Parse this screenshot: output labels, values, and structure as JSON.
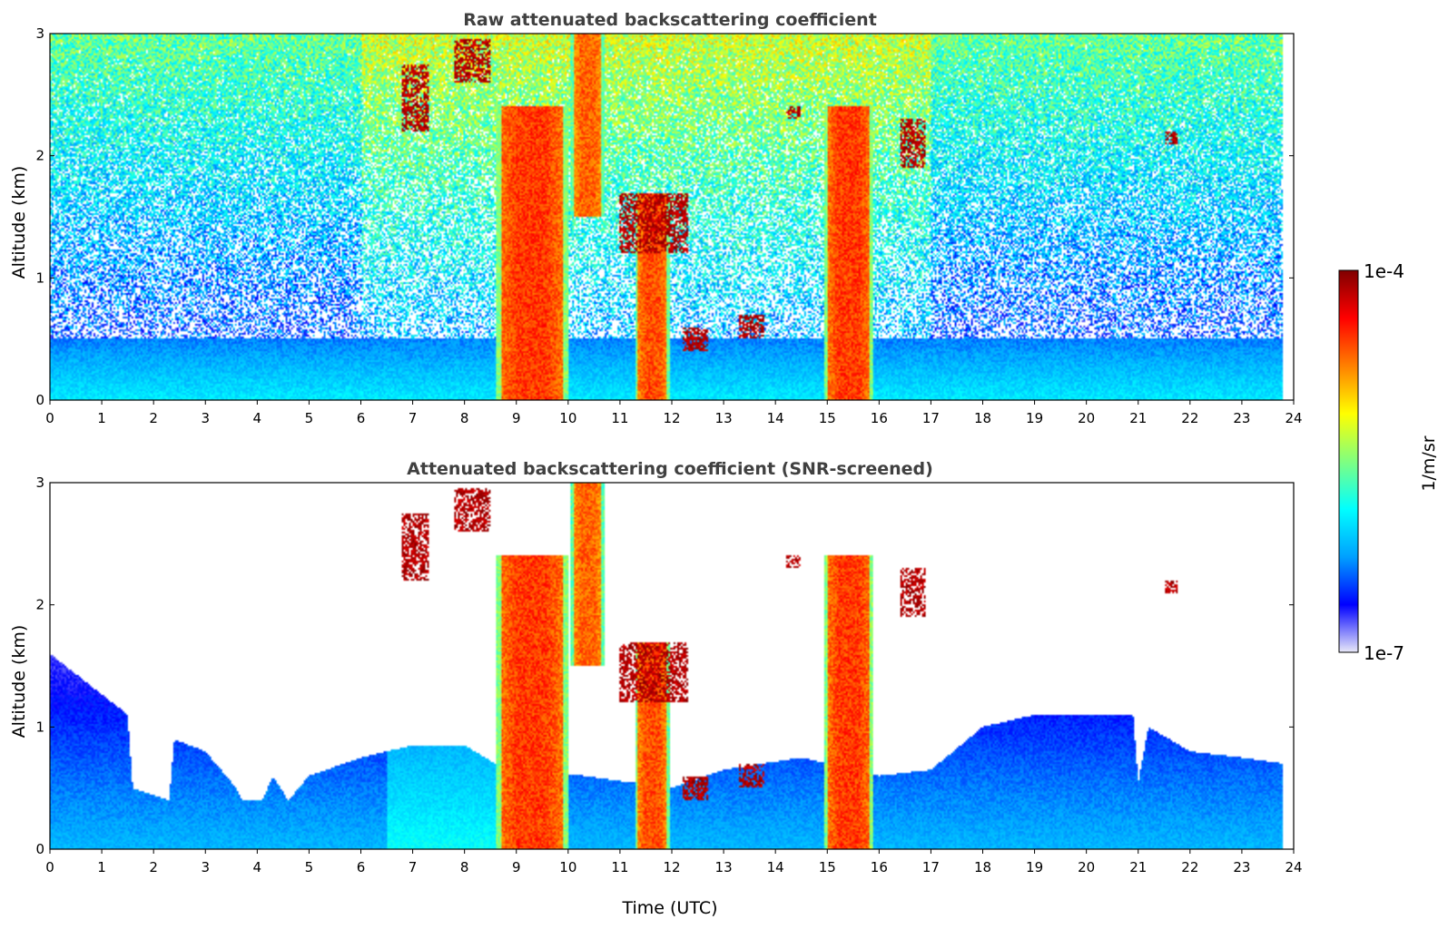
{
  "chart_data": [
    {
      "type": "heatmap",
      "title": "Raw attenuated backscattering coefficient",
      "xlabel": "",
      "ylabel": "Altitude (km)",
      "xlim": [
        0,
        24
      ],
      "ylim": [
        0,
        3
      ],
      "x_ticks": [
        "0",
        "1",
        "2",
        "3",
        "4",
        "5",
        "6",
        "7",
        "8",
        "9",
        "10",
        "11",
        "12",
        "13",
        "14",
        "15",
        "16",
        "17",
        "18",
        "19",
        "20",
        "21",
        "22",
        "23",
        "24"
      ],
      "y_ticks": [
        "0",
        "1",
        "2",
        "3"
      ],
      "grid": false,
      "features": [
        {
          "kind": "noise",
          "note_free": true,
          "x": [
            0,
            23.8
          ],
          "y": [
            0,
            3
          ]
        },
        {
          "kind": "boundary_layer",
          "x": [
            0,
            23.8
          ],
          "y": [
            0,
            0.5
          ]
        },
        {
          "kind": "precip_column",
          "x": [
            8.6,
            10.0
          ],
          "y": [
            0,
            2.4
          ],
          "intensity": 0.82
        },
        {
          "kind": "precip_column",
          "x": [
            10.05,
            10.7
          ],
          "y": [
            1.5,
            3.0
          ],
          "intensity": 0.78
        },
        {
          "kind": "precip_column",
          "x": [
            11.3,
            11.95
          ],
          "y": [
            0,
            1.7
          ],
          "intensity": 0.8
        },
        {
          "kind": "precip_column",
          "x": [
            14.95,
            15.9
          ],
          "y": [
            0,
            2.4
          ],
          "intensity": 0.82
        },
        {
          "kind": "cloud",
          "x": [
            6.8,
            7.3
          ],
          "y": [
            2.2,
            2.75
          ]
        },
        {
          "kind": "cloud",
          "x": [
            7.8,
            8.5
          ],
          "y": [
            2.6,
            2.95
          ]
        },
        {
          "kind": "cloud",
          "x": [
            11.0,
            12.3
          ],
          "y": [
            1.2,
            1.7
          ]
        },
        {
          "kind": "cloud",
          "x": [
            12.2,
            12.7
          ],
          "y": [
            0.4,
            0.6
          ]
        },
        {
          "kind": "cloud",
          "x": [
            13.3,
            13.8
          ],
          "y": [
            0.5,
            0.7
          ]
        },
        {
          "kind": "cloud",
          "x": [
            14.2,
            14.5
          ],
          "y": [
            2.3,
            2.4
          ]
        },
        {
          "kind": "cloud",
          "x": [
            16.4,
            16.9
          ],
          "y": [
            1.9,
            2.3
          ]
        },
        {
          "kind": "cloud",
          "x": [
            21.5,
            21.75
          ],
          "y": [
            2.1,
            2.2
          ]
        }
      ]
    },
    {
      "type": "heatmap",
      "title": "Attenuated backscattering coefficient (SNR-screened)",
      "xlabel": "Time (UTC)",
      "ylabel": "Altitude (km)",
      "xlim": [
        0,
        24
      ],
      "ylim": [
        0,
        3
      ],
      "x_ticks": [
        "0",
        "1",
        "2",
        "3",
        "4",
        "5",
        "6",
        "7",
        "8",
        "9",
        "10",
        "11",
        "12",
        "13",
        "14",
        "15",
        "16",
        "17",
        "18",
        "19",
        "20",
        "21",
        "22",
        "23",
        "24"
      ],
      "y_ticks": [
        "0",
        "1",
        "2",
        "3"
      ],
      "grid": false,
      "boundary_layer_top_km": {
        "time": [
          0,
          1.5,
          1.6,
          2.3,
          2.4,
          3.0,
          3.6,
          3.7,
          4.1,
          4.3,
          4.6,
          5.0,
          6.0,
          7.0,
          8.0,
          8.6,
          12.0,
          13.0,
          14.5,
          16.0,
          17.0,
          18.0,
          19.0,
          20.0,
          20.9,
          21.0,
          21.2,
          22.0,
          23.0,
          23.8
        ],
        "top": [
          1.6,
          1.1,
          0.5,
          0.4,
          0.9,
          0.8,
          0.5,
          0.4,
          0.4,
          0.6,
          0.4,
          0.6,
          0.75,
          0.85,
          0.85,
          0.7,
          0.5,
          0.65,
          0.75,
          0.6,
          0.65,
          1.0,
          1.1,
          1.1,
          1.1,
          0.55,
          1.0,
          0.8,
          0.75,
          0.7
        ]
      },
      "features": [
        {
          "kind": "precip_column",
          "x": [
            8.6,
            10.0
          ],
          "y": [
            0,
            2.4
          ],
          "intensity": 0.82
        },
        {
          "kind": "precip_column",
          "x": [
            10.05,
            10.7
          ],
          "y": [
            1.5,
            3.0
          ],
          "intensity": 0.78
        },
        {
          "kind": "precip_column",
          "x": [
            11.3,
            11.95
          ],
          "y": [
            0,
            1.7
          ],
          "intensity": 0.8
        },
        {
          "kind": "precip_column",
          "x": [
            14.95,
            15.9
          ],
          "y": [
            0,
            2.4
          ],
          "intensity": 0.82
        },
        {
          "kind": "cloud",
          "x": [
            6.8,
            7.3
          ],
          "y": [
            2.2,
            2.75
          ]
        },
        {
          "kind": "cloud",
          "x": [
            7.8,
            8.5
          ],
          "y": [
            2.6,
            2.95
          ]
        },
        {
          "kind": "cloud",
          "x": [
            11.0,
            12.3
          ],
          "y": [
            1.2,
            1.7
          ]
        },
        {
          "kind": "cloud",
          "x": [
            12.2,
            12.7
          ],
          "y": [
            0.4,
            0.6
          ]
        },
        {
          "kind": "cloud",
          "x": [
            13.3,
            13.8
          ],
          "y": [
            0.5,
            0.7
          ]
        },
        {
          "kind": "cloud",
          "x": [
            14.2,
            14.5
          ],
          "y": [
            2.3,
            2.4
          ]
        },
        {
          "kind": "cloud",
          "x": [
            16.4,
            16.9
          ],
          "y": [
            1.9,
            2.3
          ]
        },
        {
          "kind": "cloud",
          "x": [
            21.5,
            21.75
          ],
          "y": [
            2.1,
            2.2
          ]
        }
      ]
    }
  ],
  "colorbar": {
    "label": "1/m/sr",
    "max_label": "1e-4",
    "min_label": "1e-7",
    "scale": "log",
    "colormap": "jet",
    "stops": [
      "#e8e8f8",
      "#0000ff",
      "#00a0ff",
      "#00ffff",
      "#80ff80",
      "#ffff00",
      "#ff8000",
      "#ff0000",
      "#800000"
    ]
  }
}
